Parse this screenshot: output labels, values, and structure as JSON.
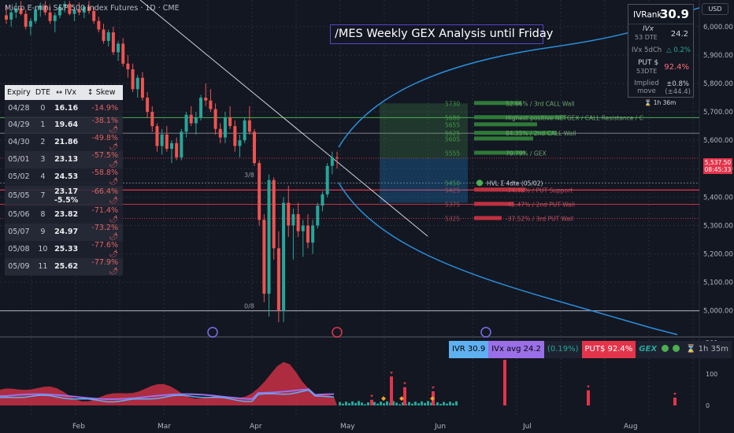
{
  "header": {
    "symbol_title": "Micro E-mini S&P 500 Index Futures · 1D · CME",
    "analysis_title": "/MES Weekly GEX Analysis until Friday",
    "currency_button": "USD"
  },
  "expiry_table": {
    "headers": [
      "Expiry",
      "DTE",
      "↔ IVx",
      "↕ Skew"
    ],
    "rows": [
      {
        "expiry": "04/28",
        "dte": "0",
        "ivx": "16.16",
        "skew": "-14.9%",
        "icon": ""
      },
      {
        "expiry": "04/29",
        "dte": "1",
        "ivx": "19.64",
        "skew": "-38.1%",
        "icon": "🌶"
      },
      {
        "expiry": "04/30",
        "dte": "2",
        "ivx": "21.86",
        "skew": "-49.8%",
        "icon": "🌶"
      },
      {
        "expiry": "05/01",
        "dte": "3",
        "ivx": "23.13",
        "skew": "-57.5%",
        "icon": "🌶"
      },
      {
        "expiry": "05/02",
        "dte": "4",
        "ivx": "24.53",
        "skew": "-58.8%",
        "icon": "🌶"
      },
      {
        "expiry": "05/05",
        "dte": "7",
        "ivx": "23.17",
        "ivx_sub": "-5.5%",
        "skew": "-66.4%",
        "icon": "🌶"
      },
      {
        "expiry": "05/06",
        "dte": "8",
        "ivx": "23.82",
        "skew": "-71.4%",
        "icon": "🌶"
      },
      {
        "expiry": "05/07",
        "dte": "9",
        "ivx": "24.97",
        "skew": "-73.2%",
        "icon": "🌶"
      },
      {
        "expiry": "05/08",
        "dte": "10",
        "ivx": "25.33",
        "skew": "-77.6%",
        "icon": "🌶"
      },
      {
        "expiry": "05/09",
        "dte": "11",
        "ivx": "25.62",
        "skew": "-77.9%",
        "icon": "🌶"
      }
    ]
  },
  "ivr_panel": {
    "ivrank_label": "IVRank",
    "ivrank_value": "30.9",
    "ivx_label": "IVx",
    "ivx_sub": "53 DTE",
    "ivx_value": "24.2",
    "ivx5d_label": "IVx 5dCh",
    "ivx5d_value": "△ 0.2%",
    "put_label": "PUT $",
    "put_sub": "53DTE",
    "put_value": "92.4%",
    "implied_label": "Implied move",
    "implied_value": "±0.8%",
    "implied_sub": "(±44.4)",
    "timer": "⌛ 1h 36m"
  },
  "status_bar": {
    "ivr": "IVR 30.9",
    "ivx_avg": "IVx avg 24.2",
    "change": "(0.19%)",
    "put": "PUT$ 92.4%",
    "gex": "GEX",
    "timer": "⌛ 1h 35m"
  },
  "price_tag": {
    "price": "5,537.50",
    "countdown": "08:45:33"
  },
  "chart_data": {
    "type": "candlestick",
    "x_labels": [
      "Feb",
      "Mar",
      "Apr",
      "May",
      "Jun",
      "Jul",
      "Aug"
    ],
    "y_ticks": [
      5000,
      5100,
      5200,
      5300,
      5400,
      5500,
      5600,
      5700,
      5800,
      5900,
      6000
    ],
    "y_tick_labels": [
      "5,000.00",
      "5,100.00",
      "5,200.00",
      "5,300.00",
      "5,400.00",
      "5,500.00",
      "5,600.00",
      "5,700.00",
      "5,800.00",
      "5,900.00",
      "6,000.00"
    ],
    "ylim": [
      4930,
      6080
    ],
    "candles": [
      {
        "o": 6040,
        "h": 6075,
        "l": 6010,
        "c": 6025
      },
      {
        "o": 6025,
        "h": 6060,
        "l": 6000,
        "c": 6050
      },
      {
        "o": 6050,
        "h": 6085,
        "l": 6030,
        "c": 6065
      },
      {
        "o": 6065,
        "h": 6090,
        "l": 6040,
        "c": 6045
      },
      {
        "o": 6045,
        "h": 6060,
        "l": 5990,
        "c": 6000
      },
      {
        "o": 6000,
        "h": 6030,
        "l": 5970,
        "c": 6020
      },
      {
        "o": 6020,
        "h": 6070,
        "l": 6010,
        "c": 6060
      },
      {
        "o": 6060,
        "h": 6085,
        "l": 6035,
        "c": 6075
      },
      {
        "o": 6075,
        "h": 6090,
        "l": 6040,
        "c": 6050
      },
      {
        "o": 6050,
        "h": 6070,
        "l": 6010,
        "c": 6020
      },
      {
        "o": 6020,
        "h": 6050,
        "l": 5980,
        "c": 6040
      },
      {
        "o": 6040,
        "h": 6080,
        "l": 6030,
        "c": 6070
      },
      {
        "o": 6070,
        "h": 6090,
        "l": 6050,
        "c": 6080
      },
      {
        "o": 6080,
        "h": 6090,
        "l": 6040,
        "c": 6045
      },
      {
        "o": 6045,
        "h": 6070,
        "l": 6020,
        "c": 6060
      },
      {
        "o": 6060,
        "h": 6085,
        "l": 6040,
        "c": 6050
      },
      {
        "o": 6050,
        "h": 6075,
        "l": 6030,
        "c": 6070
      },
      {
        "o": 6070,
        "h": 6090,
        "l": 6045,
        "c": 6055
      },
      {
        "o": 6055,
        "h": 6070,
        "l": 6010,
        "c": 6020
      },
      {
        "o": 6020,
        "h": 6035,
        "l": 5980,
        "c": 5990
      },
      {
        "o": 5990,
        "h": 6010,
        "l": 5940,
        "c": 5950
      },
      {
        "o": 5950,
        "h": 5990,
        "l": 5930,
        "c": 5980
      },
      {
        "o": 5980,
        "h": 6000,
        "l": 5900,
        "c": 5910
      },
      {
        "o": 5910,
        "h": 5950,
        "l": 5880,
        "c": 5940
      },
      {
        "o": 5940,
        "h": 5960,
        "l": 5860,
        "c": 5870
      },
      {
        "o": 5870,
        "h": 5900,
        "l": 5820,
        "c": 5850
      },
      {
        "o": 5850,
        "h": 5870,
        "l": 5770,
        "c": 5780
      },
      {
        "o": 5780,
        "h": 5830,
        "l": 5750,
        "c": 5820
      },
      {
        "o": 5820,
        "h": 5840,
        "l": 5740,
        "c": 5750
      },
      {
        "o": 5750,
        "h": 5770,
        "l": 5680,
        "c": 5700
      },
      {
        "o": 5700,
        "h": 5720,
        "l": 5630,
        "c": 5650
      },
      {
        "o": 5650,
        "h": 5660,
        "l": 5560,
        "c": 5580
      },
      {
        "o": 5580,
        "h": 5640,
        "l": 5550,
        "c": 5620
      },
      {
        "o": 5620,
        "h": 5650,
        "l": 5560,
        "c": 5570
      },
      {
        "o": 5570,
        "h": 5600,
        "l": 5520,
        "c": 5590
      },
      {
        "o": 5590,
        "h": 5610,
        "l": 5530,
        "c": 5540
      },
      {
        "o": 5540,
        "h": 5640,
        "l": 5530,
        "c": 5630
      },
      {
        "o": 5630,
        "h": 5700,
        "l": 5610,
        "c": 5690
      },
      {
        "o": 5690,
        "h": 5720,
        "l": 5650,
        "c": 5660
      },
      {
        "o": 5660,
        "h": 5700,
        "l": 5620,
        "c": 5680
      },
      {
        "o": 5680,
        "h": 5760,
        "l": 5670,
        "c": 5750
      },
      {
        "o": 5750,
        "h": 5800,
        "l": 5720,
        "c": 5740
      },
      {
        "o": 5740,
        "h": 5780,
        "l": 5700,
        "c": 5710
      },
      {
        "o": 5710,
        "h": 5730,
        "l": 5620,
        "c": 5640
      },
      {
        "o": 5640,
        "h": 5660,
        "l": 5590,
        "c": 5610
      },
      {
        "o": 5610,
        "h": 5700,
        "l": 5590,
        "c": 5680
      },
      {
        "o": 5680,
        "h": 5720,
        "l": 5640,
        "c": 5650
      },
      {
        "o": 5650,
        "h": 5670,
        "l": 5560,
        "c": 5580
      },
      {
        "o": 5580,
        "h": 5620,
        "l": 5540,
        "c": 5600
      },
      {
        "o": 5600,
        "h": 5680,
        "l": 5590,
        "c": 5670
      },
      {
        "o": 5670,
        "h": 5720,
        "l": 5620,
        "c": 5630
      },
      {
        "o": 5630,
        "h": 5640,
        "l": 5510,
        "c": 5520
      },
      {
        "o": 5520,
        "h": 5530,
        "l": 5300,
        "c": 5320
      },
      {
        "o": 5320,
        "h": 5340,
        "l": 5030,
        "c": 5060
      },
      {
        "o": 5060,
        "h": 5480,
        "l": 4980,
        "c": 5460
      },
      {
        "o": 5460,
        "h": 5470,
        "l": 5180,
        "c": 5220
      },
      {
        "o": 5220,
        "h": 5280,
        "l": 4960,
        "c": 5000
      },
      {
        "o": 5000,
        "h": 5400,
        "l": 4960,
        "c": 5380
      },
      {
        "o": 5380,
        "h": 5440,
        "l": 5260,
        "c": 5300
      },
      {
        "o": 5300,
        "h": 5360,
        "l": 5180,
        "c": 5340
      },
      {
        "o": 5340,
        "h": 5380,
        "l": 5260,
        "c": 5280
      },
      {
        "o": 5280,
        "h": 5320,
        "l": 5190,
        "c": 5300
      },
      {
        "o": 5300,
        "h": 5340,
        "l": 5220,
        "c": 5240
      },
      {
        "o": 5240,
        "h": 5320,
        "l": 5200,
        "c": 5300
      },
      {
        "o": 5300,
        "h": 5380,
        "l": 5290,
        "c": 5370
      },
      {
        "o": 5370,
        "h": 5420,
        "l": 5350,
        "c": 5410
      },
      {
        "o": 5410,
        "h": 5520,
        "l": 5400,
        "c": 5510
      },
      {
        "o": 5510,
        "h": 5560,
        "l": 5480,
        "c": 5540
      },
      {
        "o": 5540,
        "h": 5560,
        "l": 5500,
        "c": 5537
      }
    ],
    "gex_levels": [
      {
        "strike": "5730",
        "label": "52.66% / 3rd CALL Wall"
      },
      {
        "strike": "5680",
        "label": "Highest positive NETGEX / CALL Resistance / C"
      },
      {
        "strike": "5655",
        "label": ""
      },
      {
        "strike": "5625",
        "label": "84.35% / 2nd CALL Wall"
      },
      {
        "strike": "5605",
        "label": ""
      },
      {
        "strike": "5555",
        "label": "70.79% / GEX"
      },
      {
        "strike": "5450",
        "label": "HVL Σ 4dte (05/02)"
      },
      {
        "strike": "5425",
        "label": "-74.40% / PUT Support"
      },
      {
        "strike": "5375",
        "label": "-45.47% / 2nd PUT Wall"
      },
      {
        "strike": "5325",
        "label": "-37.52% / 3rd PUT Wall"
      }
    ],
    "fib_labels": [
      "3/8",
      "0/8"
    ],
    "indicator_axis": [
      "200",
      "100",
      "0"
    ]
  }
}
